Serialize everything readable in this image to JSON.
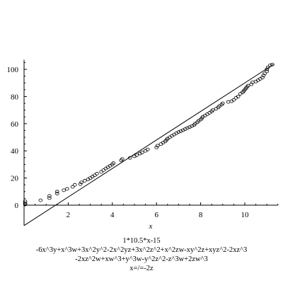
{
  "chart_data": {
    "type": "scatter",
    "title": "",
    "xlabel": "x",
    "ylabel": "",
    "xlim": [
      0,
      11.5
    ],
    "ylim": [
      -15,
      107
    ],
    "xticks": [
      2,
      4,
      6,
      8,
      10
    ],
    "yticks": [
      0,
      20,
      40,
      60,
      80,
      100
    ],
    "grid": false,
    "line": {
      "slope": 10.5,
      "intercept": -15,
      "x": [
        0,
        11.3
      ]
    },
    "points": [
      [
        0.05,
        0.5
      ],
      [
        0.05,
        1.5
      ],
      [
        0.05,
        2.8
      ],
      [
        0.75,
        3.6
      ],
      [
        1.15,
        5.2
      ],
      [
        1.15,
        6.8
      ],
      [
        1.5,
        8.5
      ],
      [
        1.5,
        10.0
      ],
      [
        1.8,
        11.0
      ],
      [
        1.95,
        12.0
      ],
      [
        2.2,
        13.5
      ],
      [
        2.3,
        15.0
      ],
      [
        2.55,
        15.5
      ],
      [
        2.6,
        16.8
      ],
      [
        2.75,
        18.0
      ],
      [
        2.9,
        19.0
      ],
      [
        3.0,
        20.0
      ],
      [
        3.1,
        21.0
      ],
      [
        3.2,
        22.0
      ],
      [
        3.3,
        23.2
      ],
      [
        3.5,
        24.5
      ],
      [
        3.6,
        25.8
      ],
      [
        3.7,
        27.0
      ],
      [
        3.8,
        28.0
      ],
      [
        3.9,
        29.0
      ],
      [
        4.0,
        30.0
      ],
      [
        4.05,
        31.0
      ],
      [
        4.4,
        33.0
      ],
      [
        4.45,
        34.0
      ],
      [
        4.8,
        34.8
      ],
      [
        5.0,
        36.0
      ],
      [
        5.1,
        36.8
      ],
      [
        5.25,
        38.0
      ],
      [
        5.35,
        38.8
      ],
      [
        5.5,
        40.0
      ],
      [
        5.6,
        41.0
      ],
      [
        6.0,
        42.5
      ],
      [
        6.05,
        43.8
      ],
      [
        6.2,
        45.0
      ],
      [
        6.3,
        46.0
      ],
      [
        6.4,
        47.0
      ],
      [
        6.45,
        48.0
      ],
      [
        6.5,
        49.0
      ],
      [
        6.6,
        50.0
      ],
      [
        6.7,
        51.0
      ],
      [
        6.8,
        52.0
      ],
      [
        6.9,
        53.0
      ],
      [
        7.0,
        53.8
      ],
      [
        7.1,
        54.5
      ],
      [
        7.2,
        55.2
      ],
      [
        7.3,
        56.0
      ],
      [
        7.4,
        56.8
      ],
      [
        7.5,
        57.5
      ],
      [
        7.6,
        58.2
      ],
      [
        7.7,
        59.0
      ],
      [
        7.75,
        60.0
      ],
      [
        7.85,
        61.0
      ],
      [
        7.9,
        62.0
      ],
      [
        8.0,
        63.0
      ],
      [
        8.05,
        64.0
      ],
      [
        8.1,
        65.0
      ],
      [
        8.2,
        66.0
      ],
      [
        8.3,
        67.0
      ],
      [
        8.4,
        68.0
      ],
      [
        8.5,
        69.0
      ],
      [
        8.55,
        70.0
      ],
      [
        8.7,
        71.0
      ],
      [
        8.8,
        72.0
      ],
      [
        8.85,
        73.0
      ],
      [
        8.95,
        74.0
      ],
      [
        9.0,
        75.0
      ],
      [
        9.25,
        76.0
      ],
      [
        9.4,
        76.5
      ],
      [
        9.5,
        77.5
      ],
      [
        9.6,
        79.0
      ],
      [
        9.7,
        80.0
      ],
      [
        9.8,
        82.0
      ],
      [
        9.9,
        83.0
      ],
      [
        9.95,
        84.0
      ],
      [
        10.0,
        85.0
      ],
      [
        10.05,
        86.0
      ],
      [
        10.1,
        87.0
      ],
      [
        10.15,
        88.0
      ],
      [
        10.3,
        89.0
      ],
      [
        10.35,
        90.5
      ],
      [
        10.5,
        91.0
      ],
      [
        10.6,
        92.0
      ],
      [
        10.7,
        93.0
      ],
      [
        10.8,
        94.0
      ],
      [
        10.85,
        95.5
      ],
      [
        10.9,
        97.0
      ],
      [
        11.0,
        98.5
      ],
      [
        11.0,
        100.0
      ],
      [
        11.05,
        101.5
      ],
      [
        11.15,
        103.0
      ],
      [
        11.25,
        103.5
      ]
    ]
  },
  "caption": [
    "1*10.5*x-15",
    "-6x^3y+x^3w+3x^2y^2-2x^2yz+3x^2z^2+x^2zw-xy^2z+xyz^2-2xz^3",
    "-2xz^2w+xw^3+y^3w-y^2z^2-z^3w+2zw^3",
    "x=/=-2z"
  ]
}
